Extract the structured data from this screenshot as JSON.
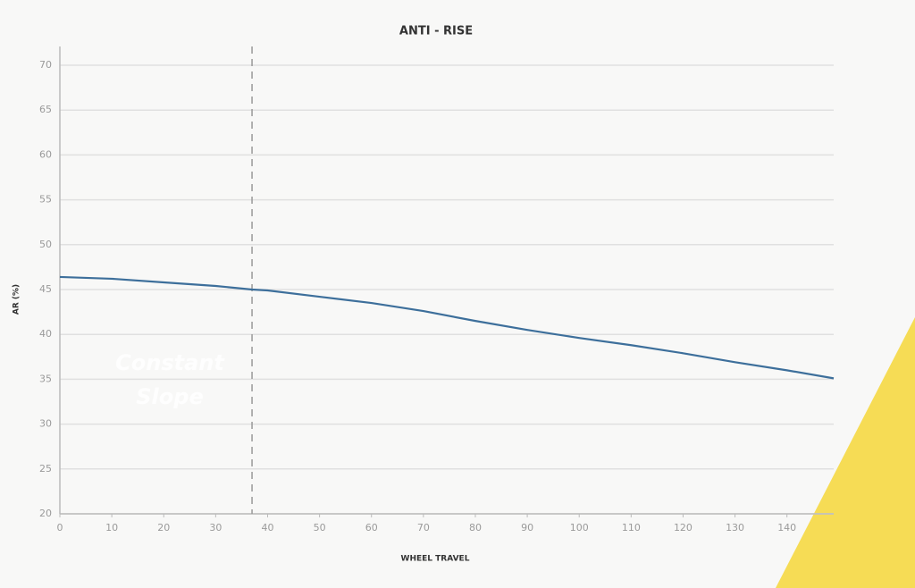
{
  "chart_data": {
    "type": "line",
    "title": "ANTI - RISE",
    "x_label": "WHEEL TRAVEL",
    "y_label": "AR (%)",
    "annotation": "Constant Slope",
    "vline": 37,
    "x": [
      0,
      10,
      20,
      30,
      37,
      40,
      50,
      60,
      70,
      80,
      90,
      100,
      110,
      120,
      130,
      140,
      149
    ],
    "series": [
      {
        "name": "AR",
        "color": "#3d6f9b",
        "values": [
          46.4,
          46.2,
          45.8,
          45.4,
          45.0,
          44.9,
          44.2,
          43.5,
          42.6,
          41.5,
          40.5,
          39.6,
          38.8,
          37.9,
          36.9,
          36.0,
          35.1
        ]
      }
    ],
    "xlim": [
      0,
      149
    ],
    "ylim": [
      20,
      70
    ],
    "xticks": [
      0,
      10,
      20,
      30,
      40,
      50,
      60,
      70,
      80,
      90,
      100,
      110,
      120,
      130,
      140
    ],
    "yticks": [
      20,
      25,
      30,
      35,
      40,
      45,
      50,
      55,
      60,
      65,
      70
    ],
    "grid": true
  }
}
